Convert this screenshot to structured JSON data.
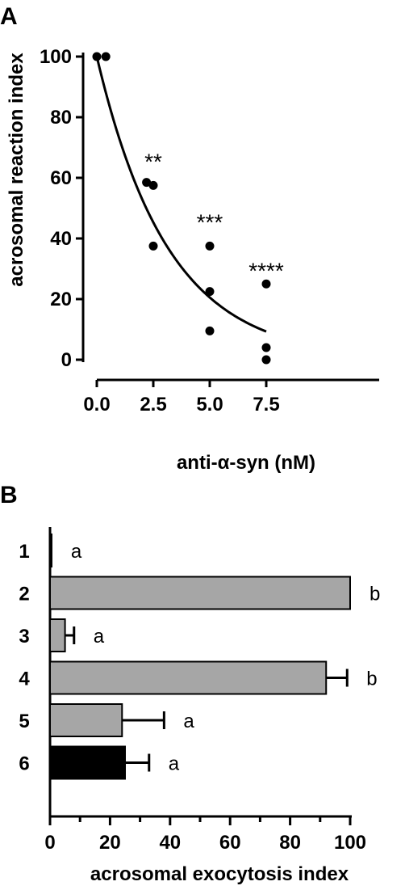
{
  "chart_data": [
    {
      "panel": "A",
      "type": "scatter",
      "ylabel": "acrosomal reaction index",
      "xlabel": "anti-α-syn (nM)",
      "xlim": [
        0,
        8.5
      ],
      "ylim": [
        0,
        100
      ],
      "xticks": [
        0.0,
        2.5,
        5.0,
        7.5
      ],
      "xtick_labels": [
        "0.0",
        "2.5",
        "5.0",
        "7.5"
      ],
      "yticks": [
        0,
        20,
        40,
        60,
        80,
        100
      ],
      "ytick_labels": [
        "0",
        "20",
        "40",
        "60",
        "80",
        "100"
      ],
      "points": [
        {
          "x": 0.0,
          "y": 100
        },
        {
          "x": 0.4,
          "y": 100
        },
        {
          "x": 2.2,
          "y": 58.5
        },
        {
          "x": 2.5,
          "y": 57.5
        },
        {
          "x": 2.5,
          "y": 37.5
        },
        {
          "x": 5.0,
          "y": 37.5
        },
        {
          "x": 5.0,
          "y": 22.5
        },
        {
          "x": 5.0,
          "y": 9.5
        },
        {
          "x": 7.5,
          "y": 25
        },
        {
          "x": 7.5,
          "y": 4
        },
        {
          "x": 7.5,
          "y": 0
        }
      ],
      "fit_curve": {
        "type": "exponential decay",
        "y0": 100,
        "x_start": 0,
        "x_end": 7.5,
        "y_end": 9.3
      },
      "annotations": [
        {
          "x": 2.5,
          "y": 66,
          "text": "**"
        },
        {
          "x": 5.0,
          "y": 46,
          "text": "***"
        },
        {
          "x": 7.5,
          "y": 30,
          "text": "****"
        }
      ],
      "grid": false
    },
    {
      "panel": "B",
      "type": "bar",
      "orientation": "horizontal",
      "xlabel": "acrosomal exocytosis index",
      "xlim": [
        0,
        100
      ],
      "xticks": [
        0,
        20,
        40,
        60,
        80,
        100
      ],
      "xtick_labels": [
        "0",
        "20",
        "40",
        "60",
        "80",
        "100"
      ],
      "categories": [
        "1",
        "2",
        "3",
        "4",
        "5",
        "6"
      ],
      "values": [
        0.5,
        100,
        5,
        92,
        24,
        25
      ],
      "errors": [
        0,
        0,
        3,
        7,
        14,
        8
      ],
      "letters": [
        "a",
        "b",
        "a",
        "b",
        "a",
        "a"
      ],
      "colors": [
        "#a6a6a6",
        "#a6a6a6",
        "#a6a6a6",
        "#a6a6a6",
        "#a6a6a6",
        "#000000"
      ],
      "grid": false
    }
  ]
}
